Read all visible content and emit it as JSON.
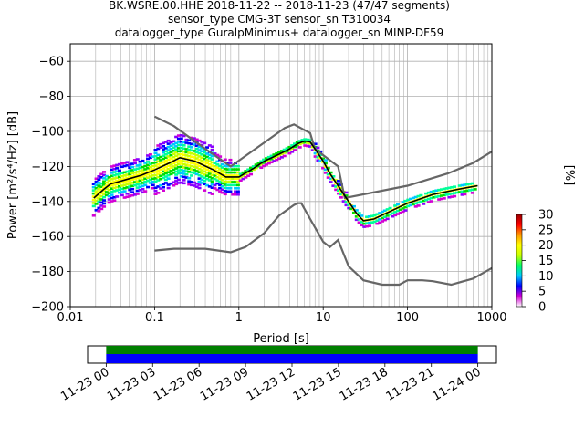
{
  "chart_data": {
    "type": "heatmap",
    "title_lines": [
      "BK.WSRE.00.HHE   2018-11-22 -- 2018-11-23  (47/47 segments)",
      "sensor_type CMG-3T sensor_sn T310034",
      "datalogger_type GuralpMinimus+ datalogger_sn MINP-DF59"
    ],
    "xlabel": "Period [s]",
    "ylabel": "Power [m²/s⁴/Hz] [dB]",
    "x_scale": "log",
    "xlim": [
      0.01,
      1000
    ],
    "ylim": [
      -200,
      -50
    ],
    "xticks": [
      {
        "value": 0.01,
        "label": "0.01"
      },
      {
        "value": 0.1,
        "label": "0.1"
      },
      {
        "value": 1,
        "label": "1"
      },
      {
        "value": 10,
        "label": "10"
      },
      {
        "value": 100,
        "label": "100"
      },
      {
        "value": 1000,
        "label": "1000"
      }
    ],
    "yticks": [
      {
        "value": -60,
        "label": "−60"
      },
      {
        "value": -80,
        "label": "−80"
      },
      {
        "value": -100,
        "label": "−100"
      },
      {
        "value": -120,
        "label": "−120"
      },
      {
        "value": -140,
        "label": "−140"
      },
      {
        "value": -160,
        "label": "−160"
      },
      {
        "value": -180,
        "label": "−180"
      },
      {
        "value": -200,
        "label": "−200"
      }
    ],
    "grid": true,
    "mean_curve": [
      [
        0.019,
        -138
      ],
      [
        0.025,
        -133
      ],
      [
        0.03,
        -130
      ],
      [
        0.05,
        -127
      ],
      [
        0.07,
        -125
      ],
      [
        0.1,
        -122
      ],
      [
        0.15,
        -118
      ],
      [
        0.2,
        -115
      ],
      [
        0.3,
        -117
      ],
      [
        0.5,
        -122
      ],
      [
        0.7,
        -126
      ],
      [
        1,
        -126
      ],
      [
        1.5,
        -121
      ],
      [
        2,
        -117
      ],
      [
        3,
        -113
      ],
      [
        4,
        -110
      ],
      [
        5,
        -107
      ],
      [
        6,
        -105.5
      ],
      [
        7,
        -106
      ],
      [
        8,
        -110
      ],
      [
        10,
        -117
      ],
      [
        12,
        -124
      ],
      [
        15,
        -131
      ],
      [
        20,
        -140
      ],
      [
        25,
        -147
      ],
      [
        30,
        -151
      ],
      [
        40,
        -150
      ],
      [
        60,
        -146
      ],
      [
        100,
        -141
      ],
      [
        200,
        -136
      ],
      [
        400,
        -133
      ],
      [
        680,
        -131
      ]
    ],
    "nlnm": [
      [
        0.1,
        -168
      ],
      [
        0.17,
        -167
      ],
      [
        0.4,
        -167
      ],
      [
        0.8,
        -169
      ],
      [
        1.2,
        -166
      ],
      [
        2,
        -158
      ],
      [
        3,
        -148
      ],
      [
        4.5,
        -142
      ],
      [
        5,
        -141
      ],
      [
        5.5,
        -141
      ],
      [
        7,
        -150
      ],
      [
        10,
        -163
      ],
      [
        12,
        -166
      ],
      [
        15,
        -162
      ],
      [
        20,
        -177
      ],
      [
        30,
        -185
      ],
      [
        50,
        -187.5
      ],
      [
        80,
        -187.5
      ],
      [
        100,
        -185
      ],
      [
        150,
        -185
      ],
      [
        200,
        -185.5
      ],
      [
        330,
        -187.5
      ],
      [
        600,
        -184
      ],
      [
        1000,
        -178
      ]
    ],
    "nhnm": [
      [
        0.1,
        -91.5
      ],
      [
        0.17,
        -97
      ],
      [
        0.4,
        -110
      ],
      [
        0.8,
        -120
      ],
      [
        3.5,
        -98
      ],
      [
        4.5,
        -96
      ],
      [
        7,
        -101
      ],
      [
        8,
        -110
      ],
      [
        15,
        -120
      ],
      [
        18,
        -138
      ],
      [
        100,
        -131
      ],
      [
        300,
        -124
      ],
      [
        600,
        -118
      ],
      [
        1000,
        -111.5
      ]
    ],
    "colorbar": {
      "label": "[%]",
      "ticks": [
        0,
        5,
        10,
        15,
        20,
        25,
        30
      ],
      "range": [
        0,
        30
      ],
      "colors": [
        "#ffffff",
        "#d400d4",
        "#0000ff",
        "#00c8ff",
        "#00ff66",
        "#c8ff00",
        "#ffff00",
        "#ff9900",
        "#ff0000",
        "#990000"
      ]
    },
    "timeline": {
      "tick_labels": [
        "11-23 00",
        "11-23 03",
        "11-23 06",
        "11-23 09",
        "11-23 12",
        "11-23 15",
        "11-23 18",
        "11-23 21",
        "11-24 00"
      ],
      "tick_hours": [
        0,
        3,
        6,
        9,
        12,
        15,
        18,
        21,
        24
      ],
      "range_hours": [
        -1.2,
        25.2
      ],
      "data_start_hour": 0,
      "data_end_hour": 24,
      "bar_colors": {
        "data": "#0000ff",
        "gaps": "#008000"
      }
    }
  }
}
